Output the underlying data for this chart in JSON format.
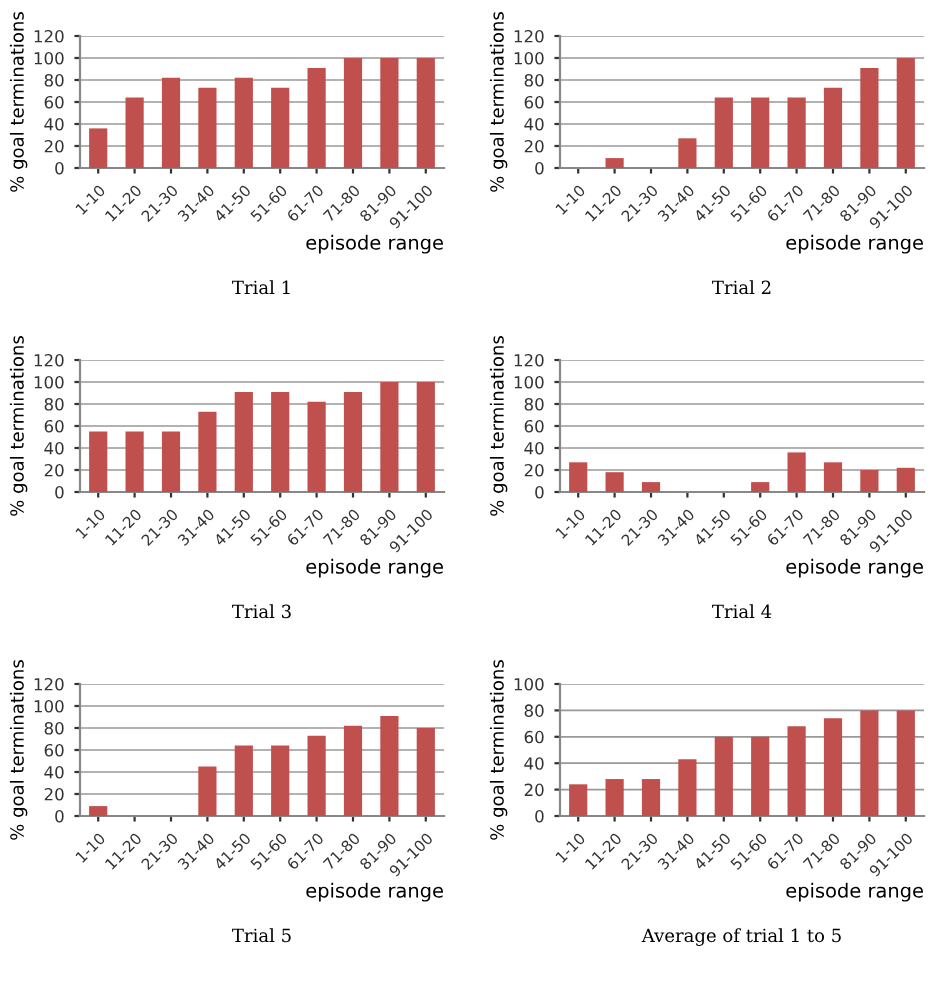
{
  "chart_data": [
    {
      "type": "bar",
      "title": "Trial 1",
      "xlabel": "episode range",
      "ylabel": "% goal terminations",
      "categories": [
        "1-10",
        "11-20",
        "21-30",
        "31-40",
        "41-50",
        "51-60",
        "61-70",
        "71-80",
        "81-90",
        "91-100"
      ],
      "values": [
        36,
        64,
        82,
        73,
        82,
        73,
        91,
        100,
        100,
        100
      ],
      "color": "#c0504d",
      "ylim": [
        0,
        120
      ],
      "yticks": [
        0,
        20,
        40,
        60,
        80,
        100,
        120
      ],
      "grid": "y"
    },
    {
      "type": "bar",
      "title": "Trial 2",
      "xlabel": "episode range",
      "ylabel": "% goal terminations",
      "categories": [
        "1-10",
        "11-20",
        "21-30",
        "31-40",
        "41-50",
        "51-60",
        "61-70",
        "71-80",
        "81-90",
        "91-100"
      ],
      "values": [
        0,
        9,
        0,
        27,
        64,
        64,
        64,
        73,
        91,
        100
      ],
      "color": "#c0504d",
      "ylim": [
        0,
        120
      ],
      "yticks": [
        0,
        20,
        40,
        60,
        80,
        100,
        120
      ],
      "grid": "y"
    },
    {
      "type": "bar",
      "title": "Trial 3",
      "xlabel": "episode range",
      "ylabel": "% goal terminations",
      "categories": [
        "1-10",
        "11-20",
        "21-30",
        "31-40",
        "41-50",
        "51-60",
        "61-70",
        "71-80",
        "81-90",
        "91-100"
      ],
      "values": [
        55,
        55,
        55,
        73,
        91,
        91,
        82,
        91,
        100,
        100
      ],
      "color": "#c0504d",
      "ylim": [
        0,
        120
      ],
      "yticks": [
        0,
        20,
        40,
        60,
        80,
        100,
        120
      ],
      "grid": "y"
    },
    {
      "type": "bar",
      "title": "Trial 4",
      "xlabel": "episode range",
      "ylabel": "% goal terminations",
      "categories": [
        "1-10",
        "11-20",
        "21-30",
        "31-40",
        "41-50",
        "51-60",
        "61-70",
        "71-80",
        "81-90",
        "91-100"
      ],
      "values": [
        27,
        18,
        9,
        0,
        0,
        9,
        36,
        27,
        20,
        22
      ],
      "color": "#c0504d",
      "ylim": [
        0,
        120
      ],
      "yticks": [
        0,
        20,
        40,
        60,
        80,
        100,
        120
      ],
      "grid": "y"
    },
    {
      "type": "bar",
      "title": "Trial 5",
      "xlabel": "episode range",
      "ylabel": "% goal terminations",
      "categories": [
        "1-10",
        "11-20",
        "21-30",
        "31-40",
        "41-50",
        "51-60",
        "61-70",
        "71-80",
        "81-90",
        "91-100"
      ],
      "values": [
        9,
        0,
        0,
        45,
        64,
        64,
        73,
        82,
        91,
        80
      ],
      "color": "#c0504d",
      "ylim": [
        0,
        120
      ],
      "yticks": [
        0,
        20,
        40,
        60,
        80,
        100,
        120
      ],
      "grid": "y"
    },
    {
      "type": "bar",
      "title": "Average of trial 1 to 5",
      "xlabel": "episode range",
      "ylabel": "% goal terminations",
      "categories": [
        "1-10",
        "11-20",
        "21-30",
        "31-40",
        "41-50",
        "51-60",
        "61-70",
        "71-80",
        "81-90",
        "91-100"
      ],
      "values": [
        24,
        28,
        28,
        43,
        60,
        60,
        68,
        74,
        80,
        80
      ],
      "color": "#c0504d",
      "ylim": [
        0,
        100
      ],
      "yticks": [
        0,
        20,
        40,
        60,
        80,
        100
      ],
      "grid": "y"
    }
  ]
}
